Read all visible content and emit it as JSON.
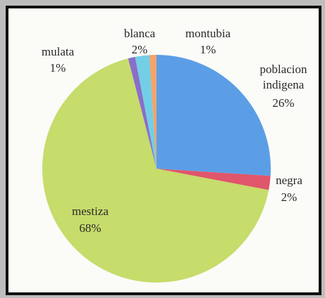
{
  "chart_data": {
    "type": "pie",
    "categories": [
      "poblacion indigena",
      "negra",
      "mestiza",
      "mulata",
      "blanca",
      "montubia"
    ],
    "values": [
      26,
      2,
      68,
      1,
      2,
      1
    ],
    "value_labels": [
      "26%",
      "2%",
      "68%",
      "1%",
      "2%",
      "1%"
    ],
    "colors": [
      "#5b9ee6",
      "#e0566a",
      "#c6dc6b",
      "#8a6fc8",
      "#72cfe6",
      "#f3a46c"
    ]
  }
}
